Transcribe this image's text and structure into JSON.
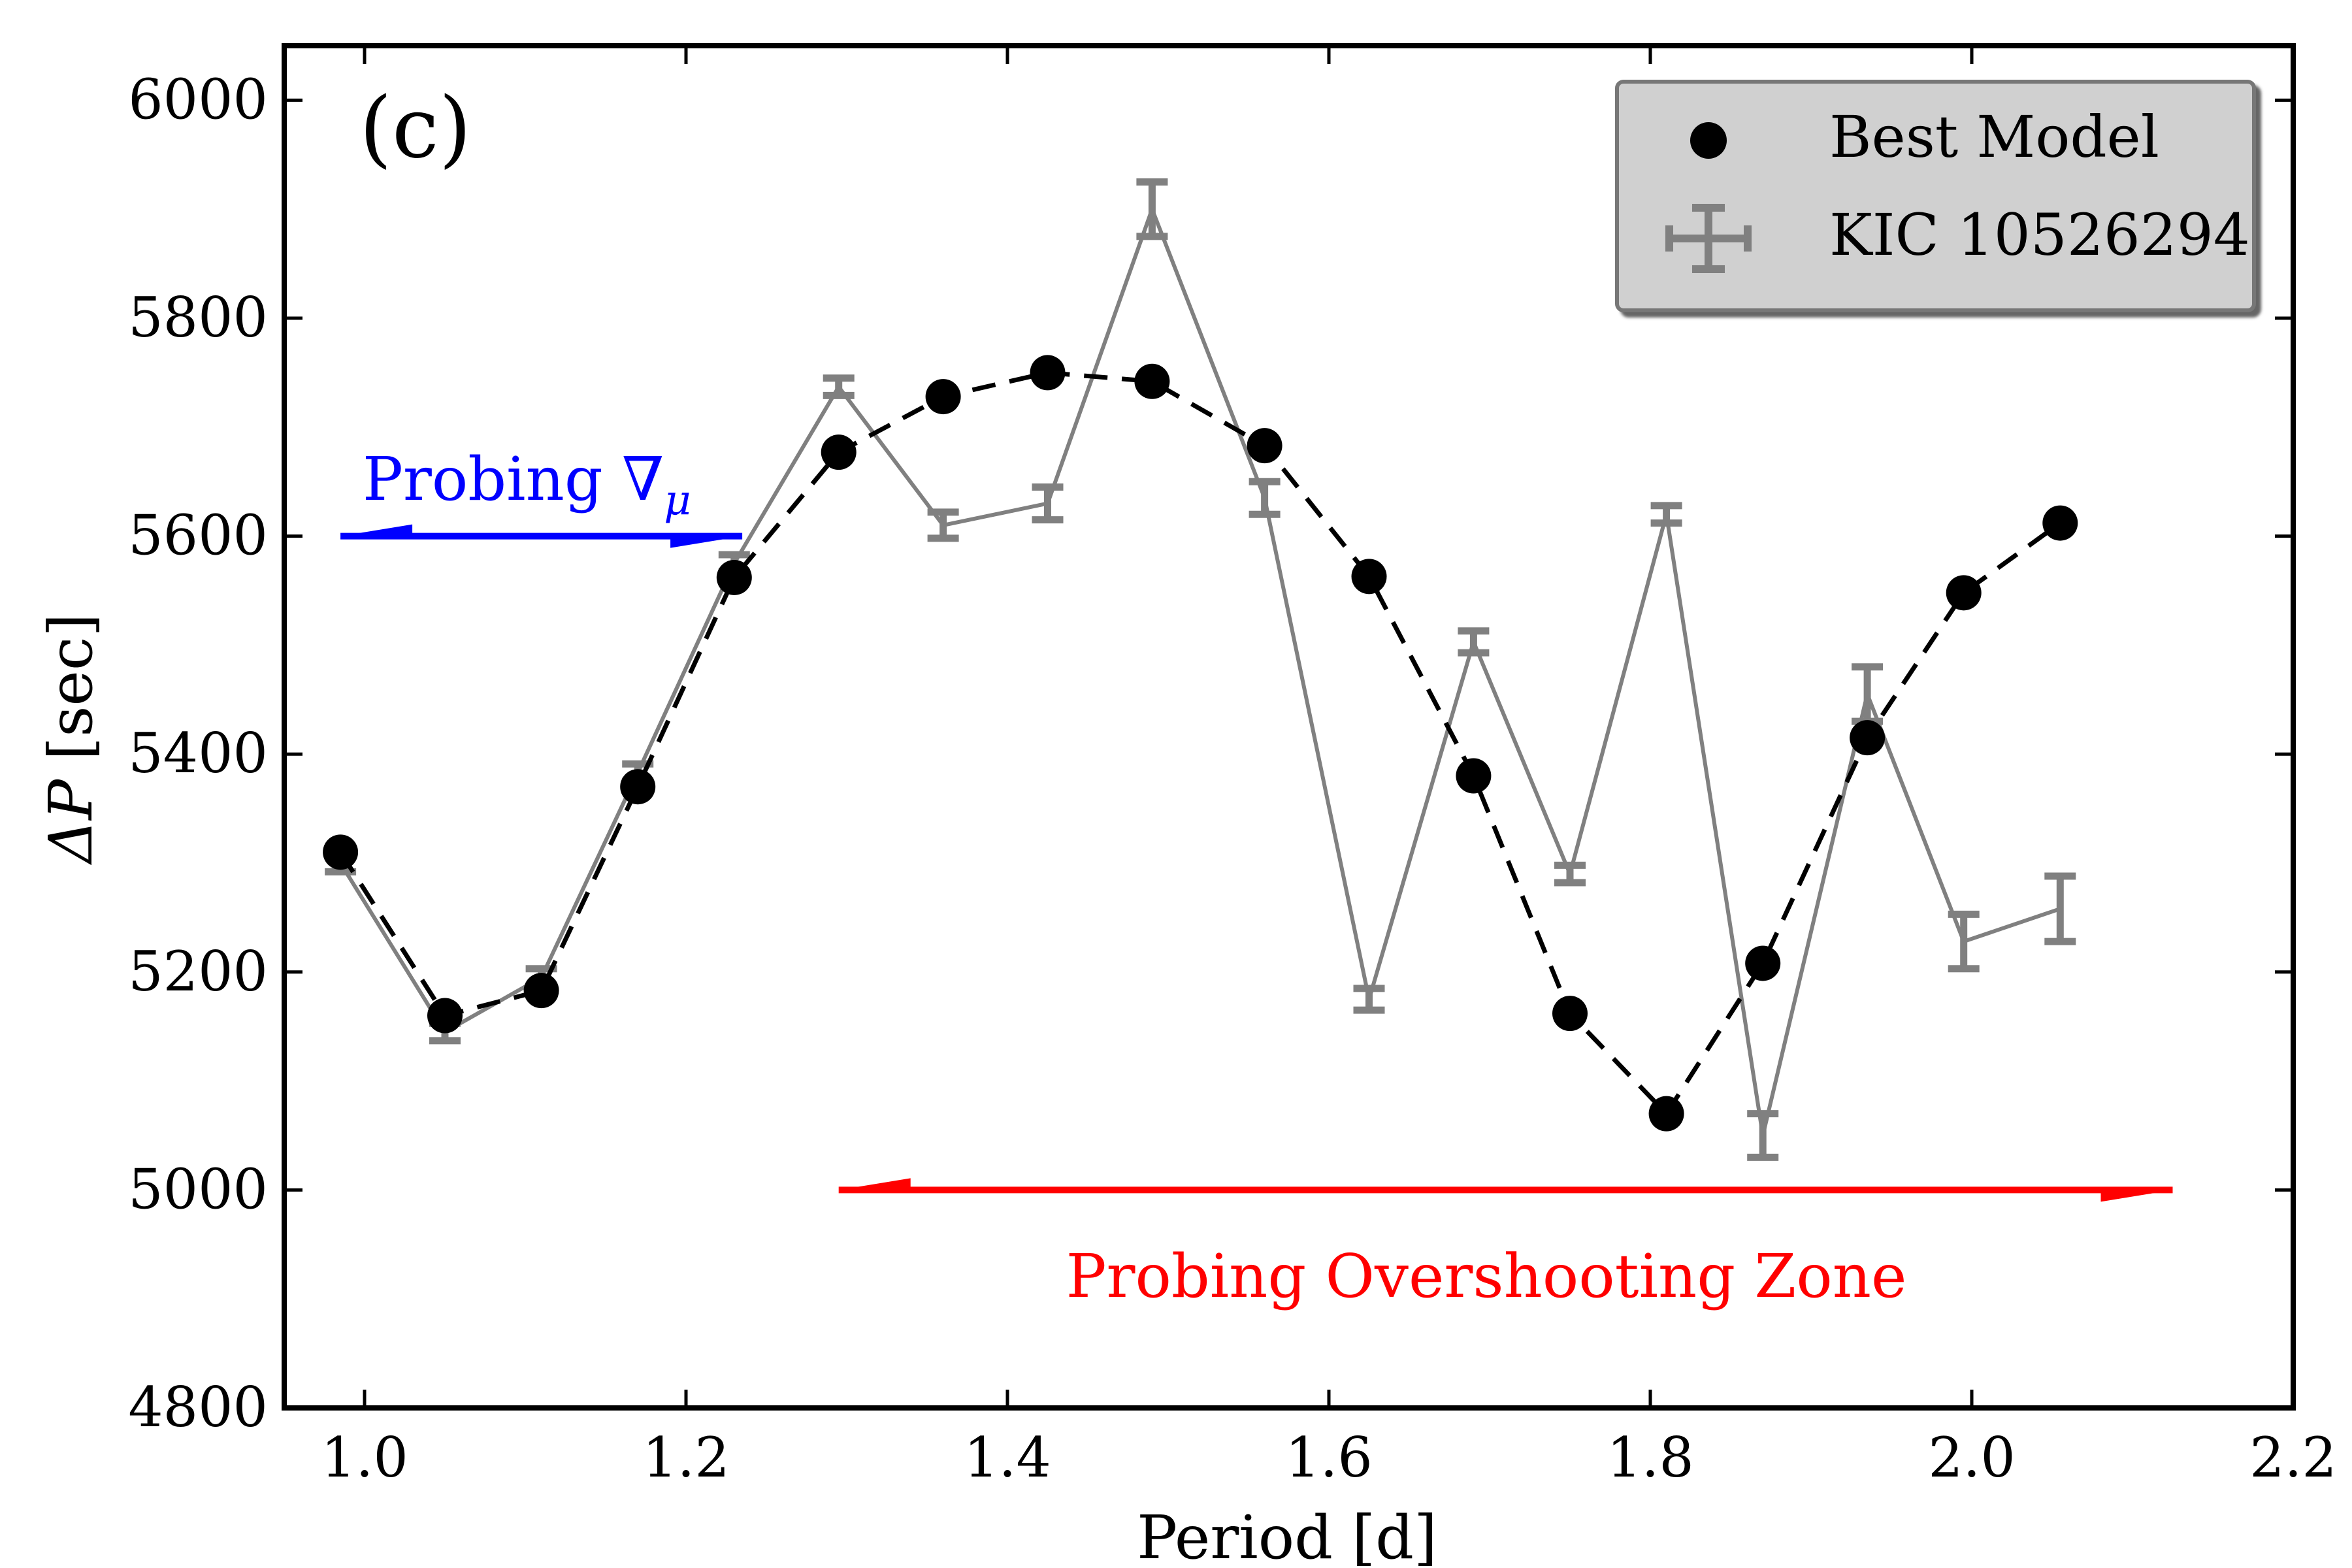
{
  "chart_data": {
    "type": "line",
    "panel_label": "(c)",
    "xlabel": "Period [d]",
    "ylabel_prefix": "ΔP",
    "ylabel_suffix": " [sec]",
    "xlim": [
      0.95,
      2.2
    ],
    "ylim": [
      4800,
      6050
    ],
    "xticks": [
      1.0,
      1.2,
      1.4,
      1.6,
      1.8,
      2.0,
      2.2
    ],
    "xtick_labels": [
      "1.0",
      "1.2",
      "1.4",
      "1.6",
      "1.8",
      "2.0",
      "2.2"
    ],
    "yticks": [
      4800,
      5000,
      5200,
      5400,
      5600,
      5800,
      6000
    ],
    "ytick_labels": [
      "4800",
      "5000",
      "5200",
      "5400",
      "5600",
      "5800",
      "6000"
    ],
    "series": [
      {
        "name": "Best Model",
        "style": "dashed line with filled circles",
        "color": "#000000",
        "x": [
          0.985,
          1.05,
          1.11,
          1.17,
          1.23,
          1.295,
          1.36,
          1.425,
          1.49,
          1.56,
          1.625,
          1.69,
          1.75,
          1.81,
          1.87,
          1.935,
          1.995,
          2.055
        ],
        "y": [
          5310,
          5160,
          5183,
          5370,
          5562,
          5677,
          5728,
          5750,
          5742,
          5683,
          5563,
          5380,
          5162,
          5070,
          5208,
          5415,
          5548,
          5612
        ]
      },
      {
        "name": "KIC 10526294",
        "style": "solid line with error bars",
        "color": "#808080",
        "x": [
          0.985,
          1.05,
          1.11,
          1.17,
          1.23,
          1.295,
          1.36,
          1.425,
          1.49,
          1.56,
          1.625,
          1.69,
          1.75,
          1.81,
          1.87,
          1.935,
          1.995,
          2.055
        ],
        "y": [
          5300,
          5145,
          5195,
          5383,
          5575,
          5737,
          5610,
          5630,
          5900,
          5635,
          5175,
          5503,
          5290,
          5620,
          5050,
          5455,
          5228,
          5258
        ],
        "yerr": [
          8,
          8,
          8,
          8,
          8,
          8,
          12,
          15,
          25,
          15,
          10,
          10,
          8,
          8,
          20,
          25,
          25,
          30
        ]
      }
    ],
    "legend": {
      "position": "top-right",
      "entries": [
        "Best Model",
        "KIC 10526294"
      ]
    },
    "annotations": [
      {
        "text_prefix": "Probing ∇",
        "text_subscript": "μ",
        "color": "#0000ff",
        "arrow_x": [
          0.985,
          1.235
        ],
        "arrow_y": 5600
      },
      {
        "text": "Probing Overshooting Zone",
        "color": "#ff0000",
        "arrow_x": [
          1.295,
          2.125
        ],
        "arrow_y": 5000
      }
    ]
  }
}
